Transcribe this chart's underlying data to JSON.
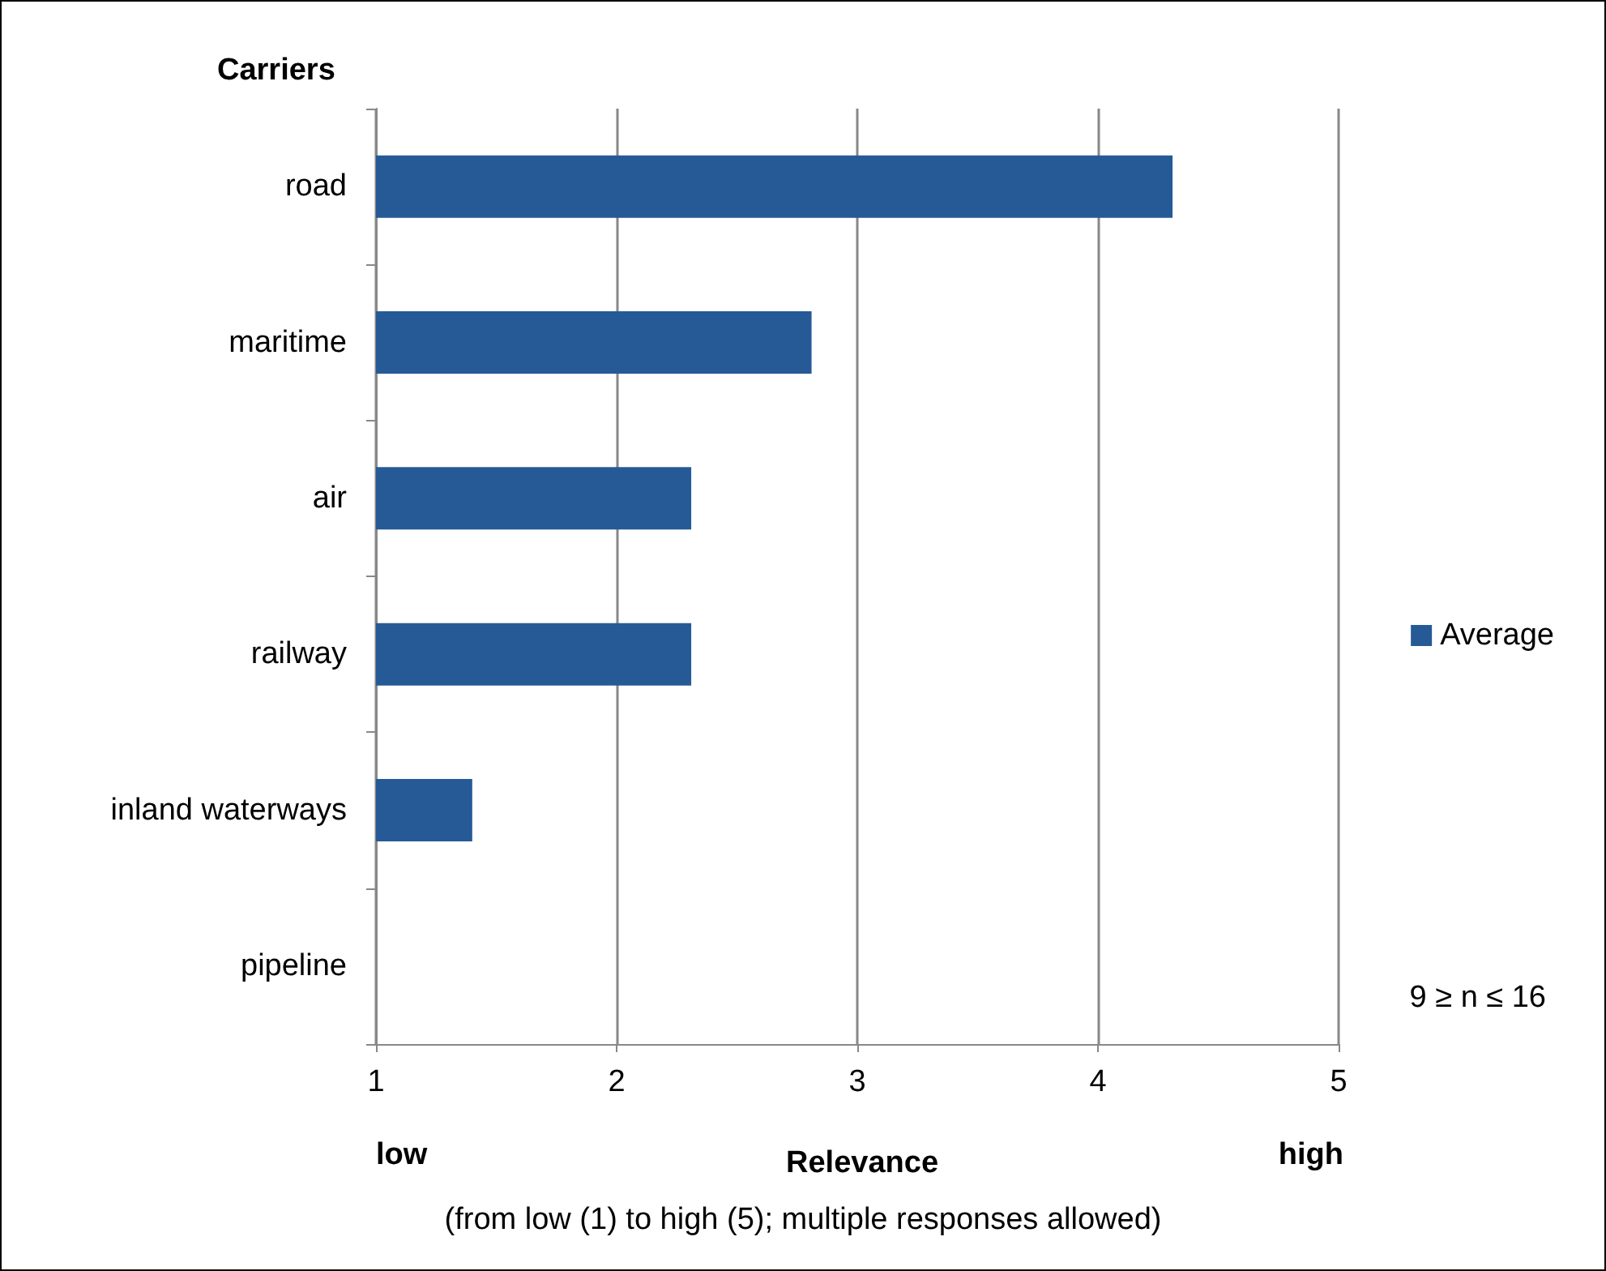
{
  "chart_data": {
    "type": "bar",
    "orientation": "horizontal",
    "ylabel": "Carriers",
    "xlabel": "Relevance",
    "categories": [
      "road",
      "maritime",
      "air",
      "railway",
      "inland waterways",
      "pipeline"
    ],
    "series": [
      {
        "name": "Average",
        "color": "#255a96",
        "values": [
          4.31,
          2.81,
          2.31,
          2.31,
          1.4,
          1.0
        ]
      }
    ],
    "xlim": [
      1,
      5
    ],
    "xticks": [
      1,
      2,
      3,
      4,
      5
    ],
    "grid": "x",
    "legend": "right",
    "annotations": [
      "low",
      "high",
      "9 ≥ n ≤ 16",
      "(from low (1) to high (5); multiple responses allowed)"
    ]
  }
}
